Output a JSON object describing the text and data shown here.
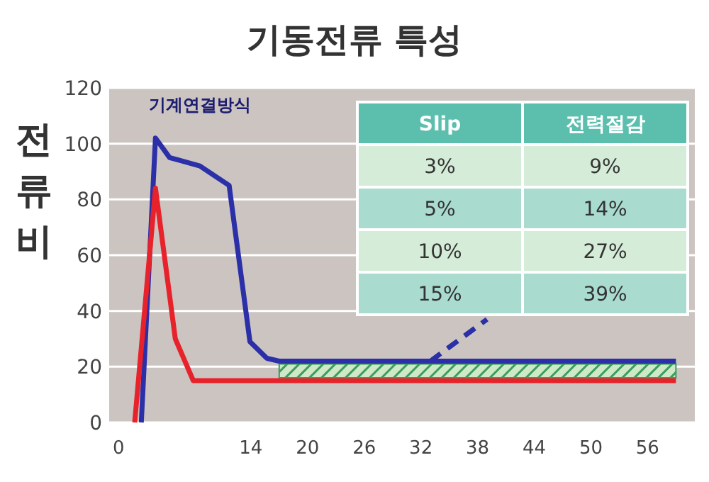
{
  "chart_data": {
    "type": "line",
    "title": "기동전류 특성",
    "ylabel": "전류비",
    "annotations": [
      "기계연결방식",
      "Slip",
      "전력절감",
      "3%",
      "9%",
      "5%",
      "14%",
      "10%",
      "27%",
      "15%",
      "39%"
    ],
    "xlim": [
      -1,
      61
    ],
    "xticks": [
      0,
      14,
      20,
      26,
      32,
      38,
      44,
      50,
      56
    ],
    "ylim": [
      0,
      120
    ],
    "yticks": [
      0,
      20,
      40,
      60,
      80,
      100,
      120
    ],
    "grid": "y",
    "series": [
      {
        "color": "#2b2fa8",
        "x": [
          2.4,
          3.9,
          5.4,
          8.6,
          11.7,
          13.9,
          15.7,
          17,
          59
        ],
        "values": [
          0,
          102,
          95,
          92,
          85,
          29,
          23,
          22,
          22
        ],
        "lower": [
          null,
          null,
          null,
          null,
          null,
          null,
          null,
          16,
          16
        ],
        "upper": [
          null,
          null,
          null,
          null,
          null,
          null,
          null,
          21,
          21
        ]
      },
      {
        "color": "#e8222a",
        "x": [
          1.7,
          3.9,
          6,
          7.9,
          59
        ],
        "values": [
          0,
          84,
          30,
          15,
          15
        ]
      },
      {
        "color": "#2b2fa8",
        "line_style": "dashed",
        "x": [
          33,
          39
        ],
        "values": [
          22,
          37
        ]
      }
    ]
  }
}
